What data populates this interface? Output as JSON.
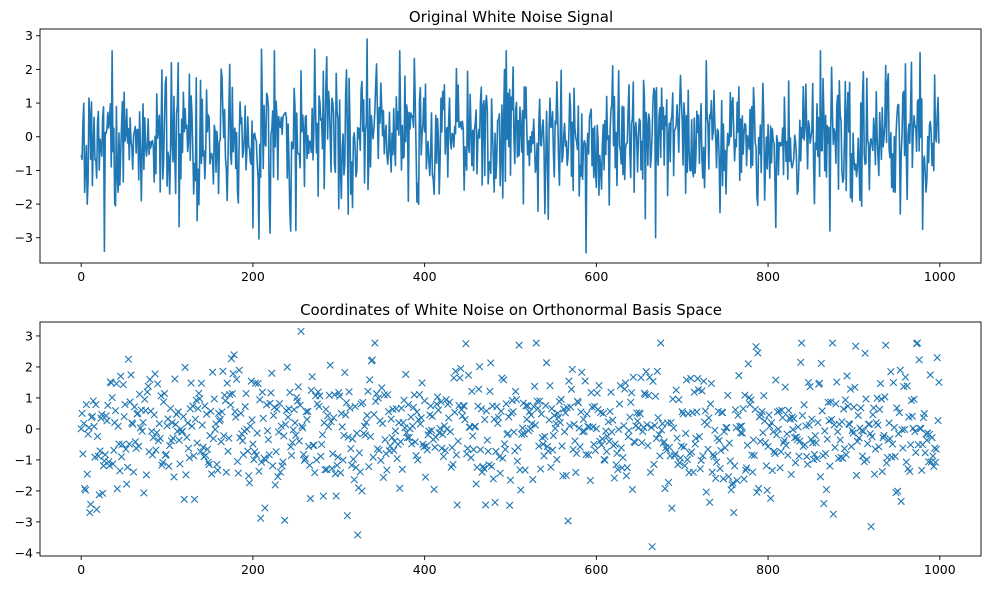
{
  "chart_data": [
    {
      "type": "line",
      "title": "Original White Noise Signal",
      "xlabel": "",
      "ylabel": "",
      "xlim": [
        -48,
        1048
      ],
      "ylim": [
        -3.75,
        3.2
      ],
      "xticks": [
        0,
        200,
        400,
        600,
        800,
        1000
      ],
      "yticks": [
        -3,
        -2,
        -1,
        0,
        1,
        2,
        3
      ],
      "grid": false,
      "legend": "none",
      "color": "#1f77b4",
      "marker": "none",
      "n_points": 1000,
      "x_start": 0,
      "x_end": 999,
      "y_min": -3.45,
      "y_max": 2.9,
      "annotated_points": [
        {
          "x": 0,
          "y": -0.55
        },
        {
          "x": 2,
          "y": 0.4
        },
        {
          "x": 7,
          "y": -2.0
        },
        {
          "x": 9,
          "y": 1.15
        },
        {
          "x": 27,
          "y": -3.4
        },
        {
          "x": 40,
          "y": -2.05
        },
        {
          "x": 105,
          "y": 2.2
        },
        {
          "x": 210,
          "y": 2.6
        },
        {
          "x": 272,
          "y": 2.6
        },
        {
          "x": 333,
          "y": 2.9
        },
        {
          "x": 316,
          "y": -2.1
        },
        {
          "x": 544,
          "y": -2.45
        },
        {
          "x": 588,
          "y": -3.45
        },
        {
          "x": 744,
          "y": -2.25
        },
        {
          "x": 872,
          "y": -2.8
        },
        {
          "x": 977,
          "y": 2.5
        },
        {
          "x": 980,
          "y": -2.75
        },
        {
          "x": 999,
          "y": -0.2
        }
      ]
    },
    {
      "type": "scatter",
      "title": "Coordinates of White Noise on Orthonormal Basis Space",
      "xlabel": "",
      "ylabel": "",
      "xlim": [
        -48,
        1048
      ],
      "ylim": [
        -4.1,
        3.45
      ],
      "xticks": [
        0,
        200,
        400,
        600,
        800,
        1000
      ],
      "yticks": [
        -4,
        -3,
        -2,
        -1,
        0,
        1,
        2,
        3
      ],
      "grid": false,
      "legend": "none",
      "color": "#1f77b4",
      "marker": "x",
      "n_points": 1000,
      "x_start": 0,
      "x_end": 999,
      "y_min": -3.8,
      "y_max": 3.15,
      "annotated_points": [
        {
          "x": 10,
          "y": -2.7
        },
        {
          "x": 55,
          "y": 2.25
        },
        {
          "x": 214,
          "y": -2.55
        },
        {
          "x": 237,
          "y": -2.95
        },
        {
          "x": 256,
          "y": 3.15
        },
        {
          "x": 310,
          "y": -2.8
        },
        {
          "x": 448,
          "y": 2.75
        },
        {
          "x": 510,
          "y": 2.7
        },
        {
          "x": 665,
          "y": -3.8
        },
        {
          "x": 788,
          "y": 2.45
        },
        {
          "x": 876,
          "y": -2.75
        },
        {
          "x": 920,
          "y": -3.15
        },
        {
          "x": 937,
          "y": 2.7
        },
        {
          "x": 997,
          "y": 2.3
        }
      ]
    }
  ]
}
